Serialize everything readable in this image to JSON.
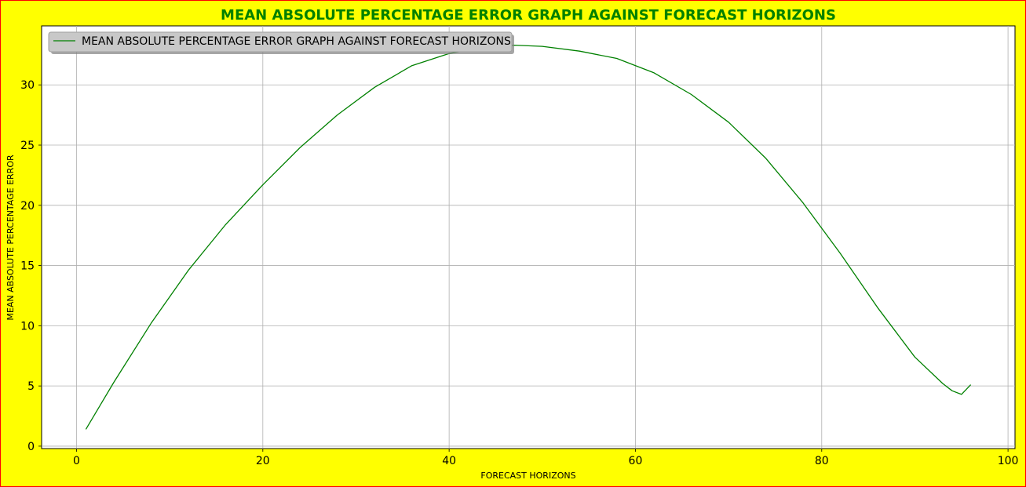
{
  "chart_data": {
    "type": "line",
    "title": "MEAN ABSOLUTE PERCENTAGE ERROR GRAPH AGAINST FORECAST HORIZONS",
    "xlabel": "FORECAST HORIZONS",
    "ylabel": "MEAN ABSOLUTE PERCENTAGE ERROR",
    "xlim": [
      -3.75,
      100.75
    ],
    "ylim": [
      -0.2,
      34.9
    ],
    "xticks": [
      0,
      20,
      40,
      60,
      80,
      100
    ],
    "yticks": [
      0,
      5,
      10,
      15,
      20,
      25,
      30
    ],
    "xtick_labels": [
      "0",
      "20",
      "40",
      "60",
      "80",
      "100"
    ],
    "ytick_labels": [
      "0",
      "5",
      "10",
      "15",
      "20",
      "25",
      "30"
    ],
    "grid": true,
    "legend": "top-left",
    "colors": {
      "line": "#008000",
      "title": "#008000",
      "background": "#ffff00",
      "border": "#ff0000",
      "legend_bg": "#c8c8c8"
    },
    "series": [
      {
        "name": "MEAN ABSOLUTE PERCENTAGE ERROR GRAPH AGAINST FORECAST HORIZONS",
        "x": [
          1,
          4,
          8,
          12,
          16,
          20,
          24,
          28,
          32,
          36,
          40,
          44,
          47,
          50,
          54,
          58,
          62,
          66,
          70,
          74,
          78,
          82,
          86,
          90,
          93,
          94,
          95,
          96
        ],
        "y": [
          1.4,
          5.3,
          10.2,
          14.6,
          18.4,
          21.7,
          24.8,
          27.5,
          29.8,
          31.6,
          32.6,
          33.2,
          33.3,
          33.2,
          32.8,
          32.2,
          31.0,
          29.2,
          26.9,
          23.9,
          20.2,
          16.0,
          11.5,
          7.4,
          5.2,
          4.6,
          4.3,
          5.1
        ]
      }
    ]
  }
}
